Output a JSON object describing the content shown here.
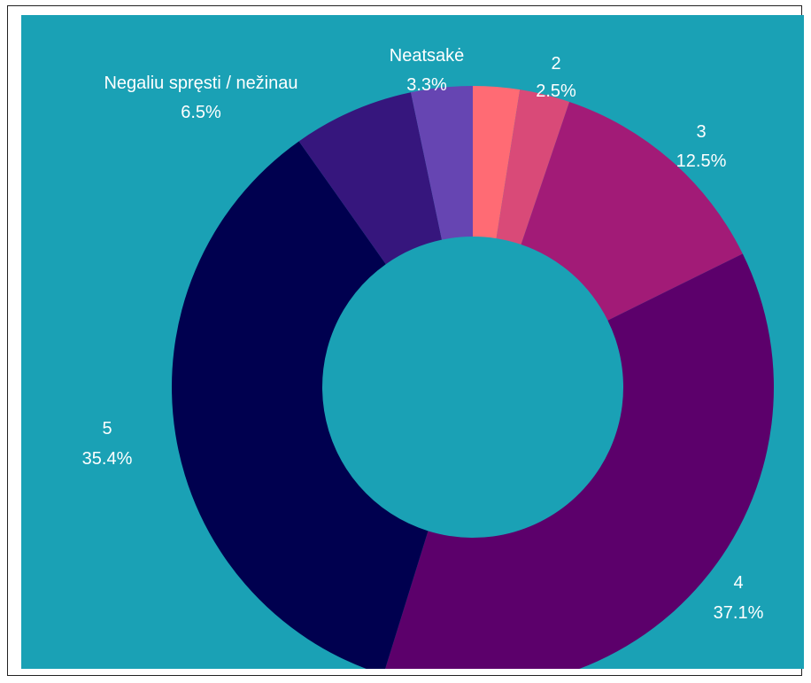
{
  "background_color": "#1aa1b5",
  "chart_data": {
    "type": "pie",
    "style": "donut",
    "start_angle_deg": 0,
    "direction": "clockwise",
    "slices": [
      {
        "label": "2",
        "percent_text": "2.5%",
        "value": 2.5,
        "color": "#ff6b74"
      },
      {
        "label": "",
        "percent_text": "",
        "value": 2.7,
        "color": "#d94a78"
      },
      {
        "label": "3",
        "percent_text": "12.5%",
        "value": 12.5,
        "color": "#a21b77"
      },
      {
        "label": "4",
        "percent_text": "37.1%",
        "value": 37.1,
        "color": "#5c006b"
      },
      {
        "label": "5",
        "percent_text": "35.4%",
        "value": 35.4,
        "color": "#00004f"
      },
      {
        "label": "Negaliu spręsti / nežinau",
        "percent_text": "6.5%",
        "value": 6.5,
        "color": "#36167d"
      },
      {
        "label": "Neatsakė",
        "percent_text": "3.3%",
        "value": 3.3,
        "color": "#6645b2"
      }
    ]
  }
}
